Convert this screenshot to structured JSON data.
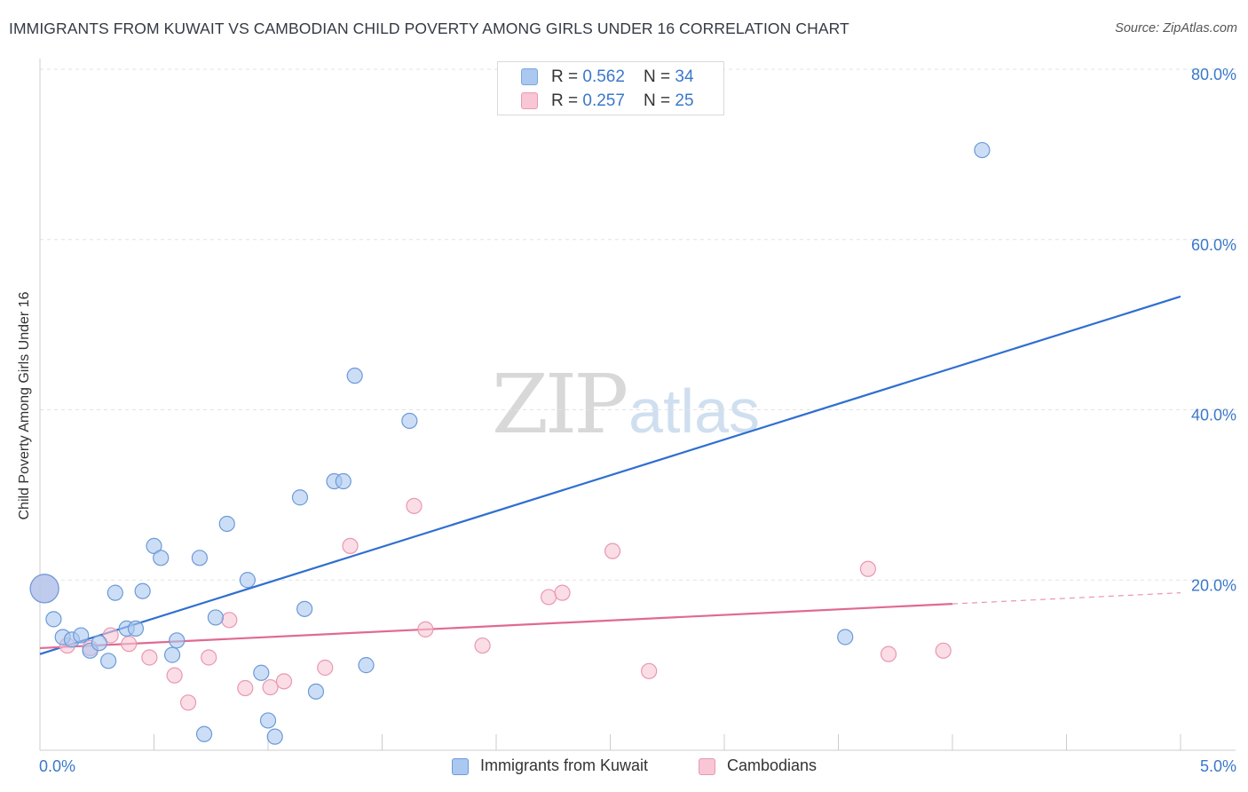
{
  "title": "IMMIGRANTS FROM KUWAIT VS CAMBODIAN CHILD POVERTY AMONG GIRLS UNDER 16 CORRELATION CHART",
  "source_label": "Source:",
  "source_value": "ZipAtlas.com",
  "watermark": {
    "zip": "ZIP",
    "atlas": "atlas"
  },
  "legend_top": [
    {
      "r_label": "R = ",
      "r": "0.562",
      "n_label": "N = ",
      "n": "34",
      "color": "#aac8f0",
      "border": "#7aa6e0"
    },
    {
      "r_label": "R = ",
      "r": "0.257",
      "n_label": "N = ",
      "n": "25",
      "color": "#f8c6d4",
      "border": "#e89ab2"
    }
  ],
  "chart_data": {
    "type": "scatter",
    "title": "IMMIGRANTS FROM KUWAIT VS CAMBODIAN CHILD POVERTY AMONG GIRLS UNDER 16 CORRELATION CHART",
    "xlabel": "",
    "ylabel": "Child Poverty Among Girls Under 16",
    "xlim": [
      0,
      5
    ],
    "ylim": [
      0,
      80
    ],
    "x_tick_labels": [
      {
        "value": 0,
        "label": "0.0%"
      },
      {
        "value": 5,
        "label": "5.0%"
      }
    ],
    "y_tick_labels": [
      {
        "value": 20,
        "label": "20.0%"
      },
      {
        "value": 40,
        "label": "40.0%"
      },
      {
        "value": 60,
        "label": "60.0%"
      },
      {
        "value": 80,
        "label": "80.0%"
      }
    ],
    "series": [
      {
        "name": "Immigrants from Kuwait",
        "color": "#aac8f0",
        "stroke": "#6c9ad8",
        "line_color": "#2f6fd0",
        "trend": {
          "x0": 0.0,
          "y0": 11.3,
          "x1": 5.0,
          "y1": 53.3
        },
        "points": [
          {
            "x": 0.02,
            "y": 19.0,
            "big": true
          },
          {
            "x": 0.06,
            "y": 15.4
          },
          {
            "x": 0.1,
            "y": 13.3
          },
          {
            "x": 0.14,
            "y": 13.0
          },
          {
            "x": 0.18,
            "y": 13.5
          },
          {
            "x": 0.22,
            "y": 11.7
          },
          {
            "x": 0.26,
            "y": 12.6
          },
          {
            "x": 0.3,
            "y": 10.5
          },
          {
            "x": 0.33,
            "y": 18.5
          },
          {
            "x": 0.38,
            "y": 14.3
          },
          {
            "x": 0.42,
            "y": 14.3
          },
          {
            "x": 0.45,
            "y": 18.7
          },
          {
            "x": 0.5,
            "y": 24.0
          },
          {
            "x": 0.53,
            "y": 22.6
          },
          {
            "x": 0.58,
            "y": 11.2
          },
          {
            "x": 0.6,
            "y": 12.9
          },
          {
            "x": 0.7,
            "y": 22.6
          },
          {
            "x": 0.72,
            "y": 1.9
          },
          {
            "x": 0.77,
            "y": 15.6
          },
          {
            "x": 0.82,
            "y": 26.6
          },
          {
            "x": 0.91,
            "y": 20.0
          },
          {
            "x": 0.97,
            "y": 9.1
          },
          {
            "x": 1.0,
            "y": 3.5
          },
          {
            "x": 1.03,
            "y": 1.6
          },
          {
            "x": 1.14,
            "y": 29.7
          },
          {
            "x": 1.16,
            "y": 16.6
          },
          {
            "x": 1.21,
            "y": 6.9
          },
          {
            "x": 1.29,
            "y": 31.6
          },
          {
            "x": 1.33,
            "y": 31.6
          },
          {
            "x": 1.38,
            "y": 44.0
          },
          {
            "x": 1.43,
            "y": 10.0
          },
          {
            "x": 1.62,
            "y": 38.7
          },
          {
            "x": 3.53,
            "y": 13.3
          },
          {
            "x": 4.13,
            "y": 70.5
          }
        ]
      },
      {
        "name": "Cambodians",
        "color": "#f8c6d4",
        "stroke": "#e898b2",
        "line_color": "#e06a92",
        "trend": {
          "x0": 0.0,
          "y0": 12.0,
          "x1": 4.0,
          "y1": 17.2
        },
        "trend_dashed": {
          "x0": 4.0,
          "y0": 17.2,
          "x1": 5.0,
          "y1": 18.5
        },
        "points": [
          {
            "x": 0.02,
            "y": 19.0,
            "big": true
          },
          {
            "x": 0.12,
            "y": 12.3
          },
          {
            "x": 0.22,
            "y": 12.0
          },
          {
            "x": 0.31,
            "y": 13.5
          },
          {
            "x": 0.39,
            "y": 12.5
          },
          {
            "x": 0.48,
            "y": 10.9
          },
          {
            "x": 0.59,
            "y": 8.8
          },
          {
            "x": 0.65,
            "y": 5.6
          },
          {
            "x": 0.74,
            "y": 10.9
          },
          {
            "x": 0.83,
            "y": 15.3
          },
          {
            "x": 0.9,
            "y": 7.3
          },
          {
            "x": 1.01,
            "y": 7.4
          },
          {
            "x": 1.07,
            "y": 8.1
          },
          {
            "x": 1.25,
            "y": 9.7
          },
          {
            "x": 1.36,
            "y": 24.0
          },
          {
            "x": 1.64,
            "y": 28.7
          },
          {
            "x": 1.69,
            "y": 14.2
          },
          {
            "x": 1.94,
            "y": 12.3
          },
          {
            "x": 2.23,
            "y": 18.0
          },
          {
            "x": 2.29,
            "y": 18.5
          },
          {
            "x": 2.51,
            "y": 23.4
          },
          {
            "x": 2.67,
            "y": 9.3
          },
          {
            "x": 3.63,
            "y": 21.3
          },
          {
            "x": 3.72,
            "y": 11.3
          },
          {
            "x": 3.96,
            "y": 11.7
          }
        ]
      }
    ]
  },
  "bottom_legend": [
    {
      "label": "Immigrants from Kuwait",
      "color": "#aac8f0",
      "border": "#6c9ad8"
    },
    {
      "label": "Cambodians",
      "color": "#f8c6d4",
      "border": "#e898b2"
    }
  ]
}
